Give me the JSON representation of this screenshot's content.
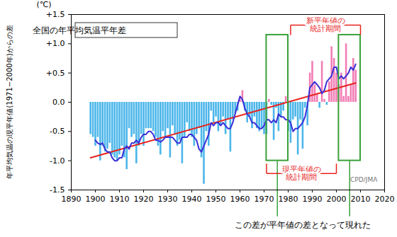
{
  "chart_data": {
    "type": "bar",
    "title": "全国の年平均気温平年差",
    "y_label": "年平均気温の現平年値(1971−2000年)からの差",
    "y_unit": "(℃)",
    "source": "CPD/JMA",
    "x": [
      1898,
      1899,
      1900,
      1901,
      1902,
      1903,
      1904,
      1905,
      1906,
      1907,
      1908,
      1909,
      1910,
      1911,
      1912,
      1913,
      1914,
      1915,
      1916,
      1917,
      1918,
      1919,
      1920,
      1921,
      1922,
      1923,
      1924,
      1925,
      1926,
      1927,
      1928,
      1929,
      1930,
      1931,
      1932,
      1933,
      1934,
      1935,
      1936,
      1937,
      1938,
      1939,
      1940,
      1941,
      1942,
      1943,
      1944,
      1945,
      1946,
      1947,
      1948,
      1949,
      1950,
      1951,
      1952,
      1953,
      1954,
      1955,
      1956,
      1957,
      1958,
      1959,
      1960,
      1961,
      1962,
      1963,
      1964,
      1965,
      1966,
      1967,
      1968,
      1969,
      1970,
      1971,
      1972,
      1973,
      1974,
      1975,
      1976,
      1977,
      1978,
      1979,
      1980,
      1981,
      1982,
      1983,
      1984,
      1985,
      1986,
      1987,
      1988,
      1989,
      1990,
      1991,
      1992,
      1993,
      1994,
      1995,
      1996,
      1997,
      1998,
      1999,
      2000,
      2001,
      2002,
      2003,
      2004,
      2005,
      2006,
      2007,
      2008
    ],
    "values": [
      -0.55,
      -0.6,
      -0.75,
      -0.6,
      -1.0,
      -0.75,
      -0.85,
      -0.8,
      -0.7,
      -0.9,
      -0.95,
      -1.0,
      -0.9,
      -0.75,
      -0.95,
      -1.15,
      -0.45,
      -0.6,
      -0.55,
      -1.05,
      -0.75,
      -0.55,
      -0.75,
      -0.45,
      -0.45,
      -0.45,
      -0.5,
      -0.6,
      -0.75,
      -0.9,
      -0.5,
      -0.6,
      -0.45,
      -0.95,
      -0.4,
      -0.55,
      -0.75,
      -0.65,
      -1.05,
      -0.6,
      -0.35,
      -0.5,
      -0.6,
      -0.75,
      -0.55,
      -0.45,
      -0.95,
      -1.4,
      -0.5,
      -0.75,
      -0.15,
      -0.35,
      -0.25,
      -0.5,
      -0.4,
      -0.25,
      -0.55,
      -0.3,
      -0.85,
      -0.3,
      -0.2,
      -0.15,
      0.05,
      0.2,
      -0.15,
      -0.35,
      -0.25,
      -0.45,
      -0.25,
      -0.45,
      -0.5,
      -0.45,
      -0.55,
      -0.55,
      0.05,
      -0.05,
      -0.65,
      -0.1,
      -0.5,
      -0.25,
      -0.15,
      0.1,
      -0.5,
      -0.7,
      -0.3,
      -0.25,
      -0.9,
      -0.3,
      -0.8,
      -0.1,
      -0.4,
      0.5,
      0.7,
      0.3,
      0.15,
      -0.1,
      0.7,
      0.05,
      -0.05,
      0.35,
      0.95,
      0.75,
      0.5,
      0.3,
      0.5,
      0.1,
      1.0,
      0.1,
      0.3,
      0.75,
      0.55
    ],
    "colors": [
      "#4cb6ea",
      "#4cb6ea",
      "#4cb6ea",
      "#4cb6ea",
      "#4cb6ea",
      "#4cb6ea",
      "#4cb6ea",
      "#4cb6ea",
      "#4cb6ea",
      "#4cb6ea",
      "#4cb6ea",
      "#4cb6ea",
      "#4cb6ea",
      "#4cb6ea",
      "#4cb6ea",
      "#4cb6ea",
      "#4cb6ea",
      "#4cb6ea",
      "#4cb6ea",
      "#4cb6ea",
      "#4cb6ea",
      "#4cb6ea",
      "#4cb6ea",
      "#4cb6ea",
      "#4cb6ea",
      "#4cb6ea",
      "#4cb6ea",
      "#4cb6ea",
      "#4cb6ea",
      "#4cb6ea",
      "#4cb6ea",
      "#4cb6ea",
      "#4cb6ea",
      "#4cb6ea",
      "#4cb6ea",
      "#4cb6ea",
      "#4cb6ea",
      "#4cb6ea",
      "#4cb6ea",
      "#4cb6ea",
      "#4cb6ea",
      "#4cb6ea",
      "#4cb6ea",
      "#4cb6ea",
      "#4cb6ea",
      "#4cb6ea",
      "#4cb6ea",
      "#4cb6ea",
      "#4cb6ea",
      "#4cb6ea",
      "#4cb6ea",
      "#4cb6ea",
      "#4cb6ea",
      "#4cb6ea",
      "#4cb6ea",
      "#4cb6ea",
      "#4cb6ea",
      "#4cb6ea",
      "#4cb6ea",
      "#4cb6ea",
      "#4cb6ea",
      "#4cb6ea",
      "#f27eb5",
      "#f27eb5",
      "#4cb6ea",
      "#4cb6ea",
      "#4cb6ea",
      "#4cb6ea",
      "#4cb6ea",
      "#4cb6ea",
      "#4cb6ea",
      "#4cb6ea",
      "#4cb6ea",
      "#4cb6ea",
      "#f27eb5",
      "#4cb6ea",
      "#4cb6ea",
      "#4cb6ea",
      "#4cb6ea",
      "#4cb6ea",
      "#4cb6ea",
      "#f27eb5",
      "#4cb6ea",
      "#4cb6ea",
      "#4cb6ea",
      "#4cb6ea",
      "#4cb6ea",
      "#4cb6ea",
      "#4cb6ea",
      "#4cb6ea",
      "#4cb6ea",
      "#f27eb5",
      "#f27eb5",
      "#f27eb5",
      "#f27eb5",
      "#4cb6ea",
      "#f27eb5",
      "#f27eb5",
      "#4cb6ea",
      "#f27eb5",
      "#f27eb5",
      "#f27eb5",
      "#f27eb5",
      "#f27eb5",
      "#f27eb5",
      "#f27eb5",
      "#f27eb5",
      "#f27eb5",
      "#f27eb5",
      "#f27eb5",
      "#f27eb5"
    ],
    "running_mean": {
      "type": "line",
      "color": "#3b2fd6",
      "values": [
        null,
        null,
        -0.65,
        -0.7,
        -0.72,
        -0.7,
        -0.8,
        -0.85,
        -0.85,
        -0.95,
        -1.0,
        -1.0,
        -0.95,
        -0.95,
        -0.8,
        -0.75,
        -0.8,
        -0.7,
        -0.7,
        -0.65,
        -0.7,
        -0.6,
        -0.55,
        -0.55,
        -0.5,
        -0.5,
        -0.55,
        -0.65,
        -0.65,
        -0.68,
        -0.65,
        -0.6,
        -0.6,
        -0.6,
        -0.6,
        -0.65,
        -0.7,
        -0.7,
        -0.6,
        -0.6,
        -0.6,
        -0.55,
        -0.55,
        -0.6,
        -0.65,
        -0.8,
        -0.85,
        -0.75,
        -0.65,
        -0.55,
        -0.35,
        -0.4,
        -0.35,
        -0.35,
        -0.4,
        -0.35,
        -0.4,
        -0.45,
        -0.45,
        -0.35,
        -0.2,
        -0.05,
        0.1,
        0.05,
        -0.1,
        -0.2,
        -0.25,
        -0.35,
        -0.35,
        -0.4,
        -0.45,
        -0.45,
        -0.4,
        -0.3,
        -0.3,
        -0.35,
        -0.3,
        -0.35,
        -0.2,
        -0.25,
        -0.25,
        -0.3,
        -0.3,
        -0.35,
        -0.5,
        -0.45,
        -0.45,
        -0.4,
        -0.35,
        -0.25,
        -0.05,
        0.25,
        0.3,
        0.35,
        0.3,
        0.25,
        0.15,
        0.2,
        0.35,
        0.4,
        0.45,
        0.6,
        0.6,
        0.4,
        0.45,
        0.4,
        0.45,
        0.5,
        0.6,
        0.55,
        0.65
      ]
    },
    "trend": {
      "type": "line",
      "color": "#e8231c",
      "x": [
        1898,
        2008
      ],
      "values": [
        -0.95,
        0.33
      ]
    },
    "periods": [
      {
        "label": "現平年値の\n統計期間",
        "x": [
          1971,
          2000
        ],
        "color": "#e8231c"
      },
      {
        "label": "新平年値の\n統計期間",
        "x": [
          1981,
          2010
        ],
        "color": "#e8231c"
      }
    ],
    "highlights": {
      "color": "#3aa13a",
      "ranges": [
        [
          1971,
          1980
        ],
        [
          2001,
          2010
        ]
      ],
      "annotation": "この差が平年値の差となって現れた"
    },
    "xlim": [
      1890,
      2020
    ],
    "xticks": [
      1890,
      1900,
      1910,
      1920,
      1930,
      1940,
      1950,
      1960,
      1970,
      1980,
      1990,
      2000,
      2010,
      2020
    ],
    "ylim": [
      -1.5,
      1.5
    ],
    "yticks": [
      {
        "value": -1.5,
        "label": "-1.5"
      },
      {
        "value": -1.0,
        "label": "-1.0"
      },
      {
        "value": -0.5,
        "label": "-0.5"
      },
      {
        "value": 0,
        "label": "0.0"
      },
      {
        "value": 0.5,
        "label": "+0.5"
      },
      {
        "value": 1.0,
        "label": "+1.0"
      },
      {
        "value": 1.5,
        "label": "+1.5"
      }
    ],
    "grid": false
  }
}
